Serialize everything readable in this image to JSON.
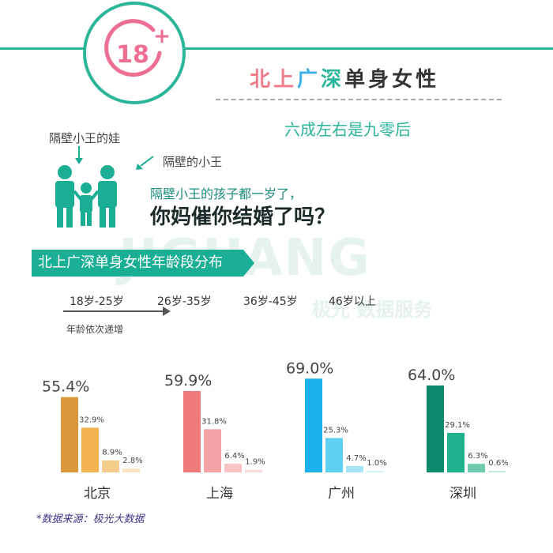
{
  "header": {
    "badge_text": "18",
    "badge_plus": "+",
    "title_chars": [
      {
        "ch": "北",
        "color": "#f07d8c"
      },
      {
        "ch": "上",
        "color": "#f07d8c"
      },
      {
        "ch": "广",
        "color": "#40b0e8"
      },
      {
        "ch": "深",
        "color": "#2bb59a"
      },
      {
        "ch": "单",
        "color": "#333333"
      },
      {
        "ch": "身",
        "color": "#333333"
      },
      {
        "ch": "女",
        "color": "#333333"
      },
      {
        "ch": "性",
        "color": "#333333"
      }
    ],
    "subtitle": "六成左右是九零后"
  },
  "illustration": {
    "label_child": "隔壁小王的娃",
    "label_wang": "隔壁的小王",
    "question_line1": "隔壁小王的孩子都一岁了，",
    "question_line2": "你妈催你结婚了吗？"
  },
  "section": {
    "banner": "北上广深单身女性年龄段分布",
    "age_groups": [
      "18岁-25岁",
      "26岁-35岁",
      "36岁-45岁",
      "46岁以上"
    ],
    "ascending_note": "年龄依次递增"
  },
  "watermark": {
    "main": "JIGUANG",
    "sub": "极光 数据服务"
  },
  "chart_data": {
    "type": "bar",
    "categories": [
      "北京",
      "上海",
      "广州",
      "深圳"
    ],
    "age_groups": [
      "18岁-25岁",
      "26岁-35岁",
      "36岁-45岁",
      "46岁以上"
    ],
    "series": [
      {
        "city": "北京",
        "values": [
          55.4,
          32.9,
          8.9,
          2.8
        ],
        "labels": [
          "55.4%",
          "32.9%",
          "8.9%",
          "2.8%"
        ],
        "colors": [
          "#d9963a",
          "#f2b451",
          "#f6cc8c",
          "#fbe3c6"
        ]
      },
      {
        "city": "上海",
        "values": [
          59.9,
          31.8,
          6.4,
          1.9
        ],
        "labels": [
          "59.9%",
          "31.8%",
          "6.4%",
          "1.9%"
        ],
        "colors": [
          "#ee7b7c",
          "#f4a4a4",
          "#f8c4c3",
          "#fbdcdc"
        ]
      },
      {
        "city": "广州",
        "values": [
          69.0,
          25.3,
          4.7,
          1.0
        ],
        "labels": [
          "69.0%",
          "25.3%",
          "4.7%",
          "1.0%"
        ],
        "colors": [
          "#1ab0ea",
          "#5fd0f2",
          "#a6e4f7",
          "#d6f3fb"
        ]
      },
      {
        "city": "深圳",
        "values": [
          64.0,
          29.1,
          6.3,
          0.6
        ],
        "labels": [
          "64.0%",
          "29.1%",
          "6.3%",
          "0.6%"
        ],
        "colors": [
          "#0d8a6e",
          "#1fb28e",
          "#6fcbb0",
          "#c2eadd"
        ]
      }
    ]
  },
  "footer": {
    "source": "*数据来源：极光大数据"
  }
}
